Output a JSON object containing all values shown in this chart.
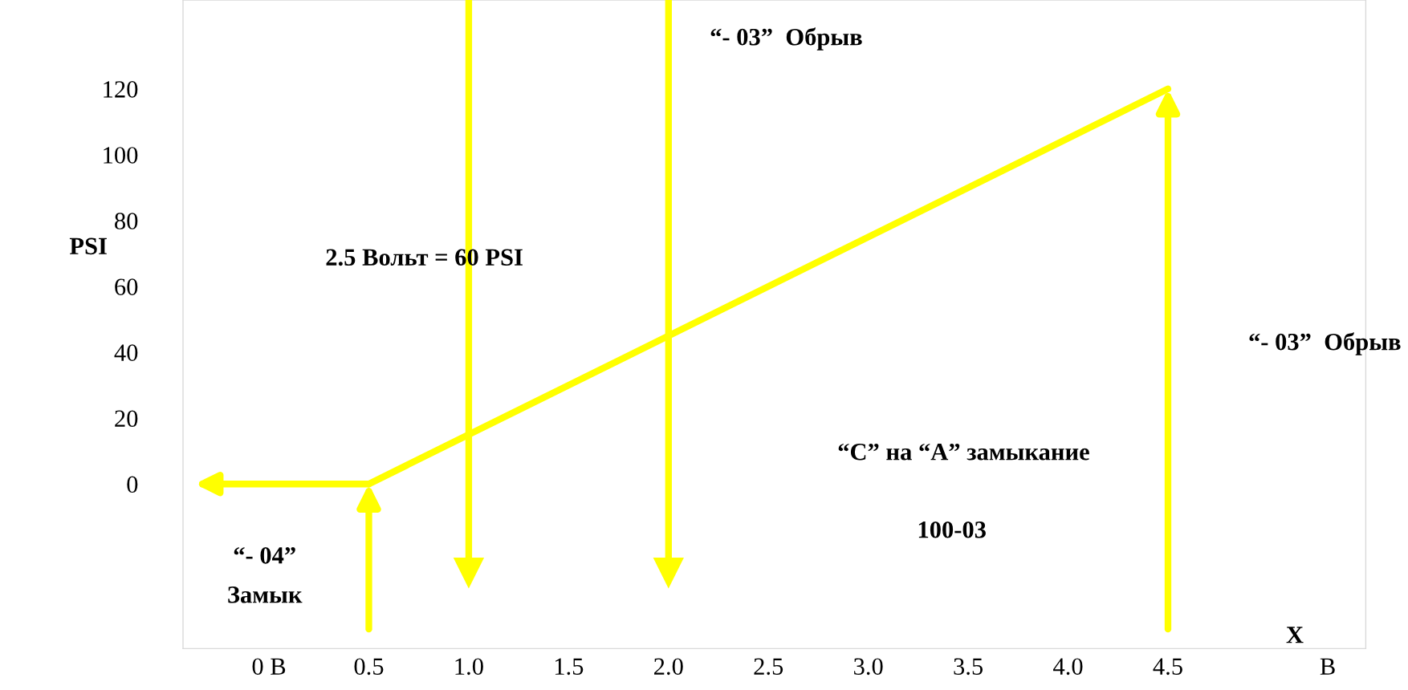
{
  "chart_data": {
    "type": "line",
    "series": [
      {
        "color": "#ffff00",
        "x": [
          0.5,
          4.5
        ],
        "values": [
          0,
          120
        ]
      }
    ],
    "xlim": [
      -0.43,
      5.49
    ],
    "ylim": [
      -50,
      147
    ],
    "xticks": [
      {
        "value": 0,
        "label": "0 B"
      },
      0.5,
      {
        "value": 1,
        "label": "1.0"
      },
      1.5,
      {
        "value": 2,
        "label": "2.0"
      },
      2.5,
      {
        "value": 3,
        "label": "3.0"
      },
      3.5,
      {
        "value": 4,
        "label": "4.0"
      },
      4.5,
      {
        "value": 5.3,
        "label": "B"
      }
    ],
    "yticks": [
      0,
      20,
      40,
      60,
      80,
      100,
      120
    ],
    "ylabel": "PSI",
    "xlabel": "X",
    "marker": "none",
    "line_style": "solid",
    "ref_lines": [
      {
        "axis": "x",
        "value": 1.0,
        "color": "#ffff00"
      },
      {
        "axis": "x",
        "value": 2.0,
        "color": "#ffff00"
      }
    ],
    "annotations": [
      "“- 03”  Обрыв",
      "2.5 Вольт = 60 PSI",
      "“- 03”  Обрыв",
      "“С” на “А” замыкание",
      "100-03",
      "“- 04”\nЗамык"
    ]
  }
}
